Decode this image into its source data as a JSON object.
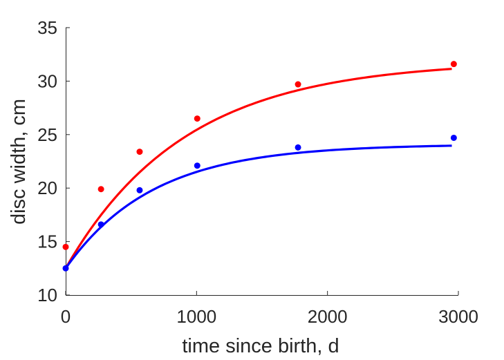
{
  "chart_data": {
    "type": "scatter",
    "title": "",
    "xlabel": "time since birth, d",
    "ylabel": "disc width, cm",
    "xlim": [
      0,
      3000
    ],
    "ylim": [
      10,
      35
    ],
    "xticks": [
      0,
      1000,
      2000,
      3000
    ],
    "yticks": [
      10,
      15,
      20,
      25,
      30,
      35
    ],
    "xtick_labels": [
      "0",
      "1000",
      "2000",
      "3000"
    ],
    "ytick_labels": [
      "10",
      "15",
      "20",
      "25",
      "30",
      "35"
    ],
    "grid": false,
    "legend": "none",
    "series": [
      {
        "color": "#ff0000",
        "points": {
          "x": [
            0,
            270,
            565,
            1005,
            1775,
            2965
          ],
          "y": [
            14.5,
            19.9,
            23.4,
            26.5,
            29.7,
            31.6
          ]
        },
        "fit": {
          "model": "von Bertalanffy",
          "L0": 12.5,
          "Linf": 31.9,
          "k": 0.0011,
          "x_end": 2950
        }
      },
      {
        "color": "#0000ff",
        "points": {
          "x": [
            0,
            270,
            565,
            1005,
            1775,
            2965
          ],
          "y": [
            12.5,
            16.6,
            19.8,
            22.1,
            23.8,
            24.7
          ]
        },
        "fit": {
          "model": "von Bertalanffy",
          "L0": 12.5,
          "Linf": 24.1,
          "k": 0.0015,
          "x_end": 2950
        }
      }
    ]
  }
}
